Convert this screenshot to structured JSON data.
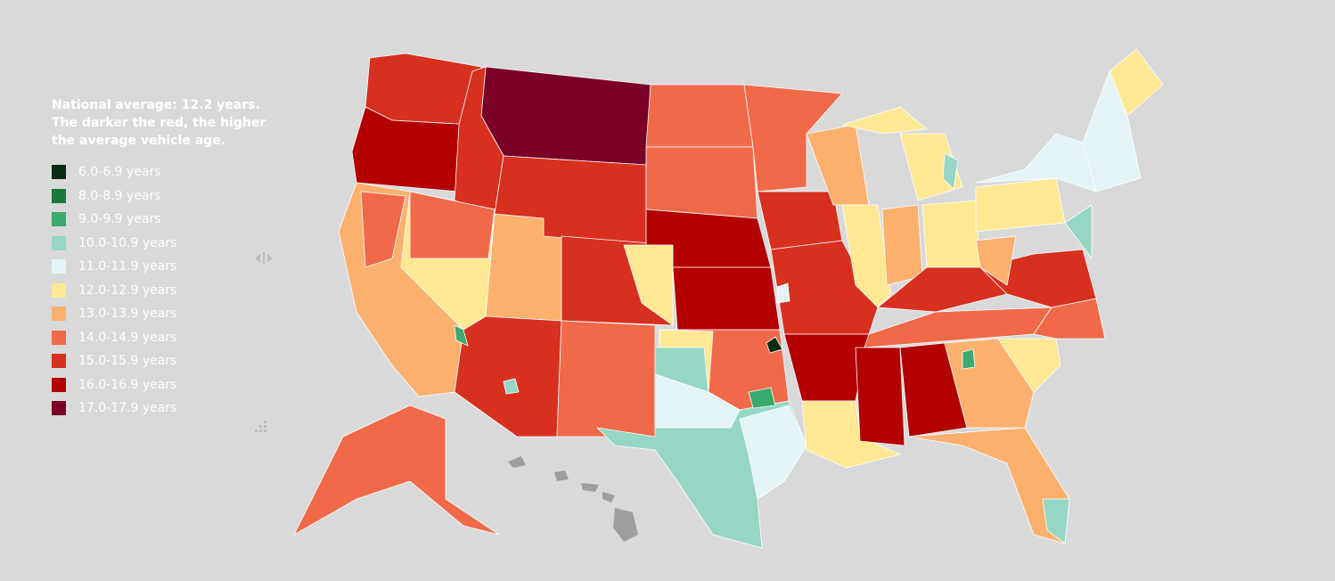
{
  "legend": {
    "title_lines": [
      "National average: 12.2 years.",
      "The darker the red, the higher",
      "the average vehicle age."
    ],
    "items": [
      {
        "label": "6.0-6.9 years",
        "color": "#0b2a14"
      },
      {
        "label": "8.0-8.9 years",
        "color": "#1a7a3a"
      },
      {
        "label": "9.0-9.9 years",
        "color": "#3aaa6e"
      },
      {
        "label": "10.0-10.9 years",
        "color": "#96d6c4"
      },
      {
        "label": "11.0-11.9 years",
        "color": "#e4f4f6"
      },
      {
        "label": "12.0-12.9 years",
        "color": "#fee894"
      },
      {
        "label": "13.0-13.9 years",
        "color": "#fbb06e"
      },
      {
        "label": "14.0-14.9 years",
        "color": "#f06a4a"
      },
      {
        "label": "15.0-15.9 years",
        "color": "#d7301f"
      },
      {
        "label": "16.0-16.9 years",
        "color": "#b30000"
      },
      {
        "label": "17.0-17.9 years",
        "color": "#7a0026"
      }
    ]
  }
}
